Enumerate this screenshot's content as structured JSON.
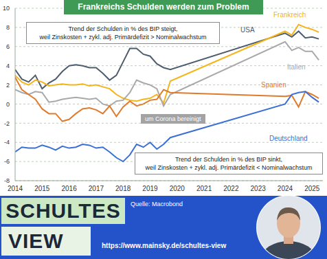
{
  "chart_data": {
    "type": "line",
    "title": "Frankreichs Schulden werden zum Problem",
    "x": [
      2014,
      2014.25,
      2014.5,
      2014.75,
      2015,
      2015.25,
      2015.5,
      2015.75,
      2016,
      2016.25,
      2016.5,
      2016.75,
      2017,
      2017.25,
      2017.5,
      2017.75,
      2018,
      2018.25,
      2018.5,
      2018.75,
      2019,
      2019.25,
      2019.5,
      2019.75,
      2024,
      2024.25,
      2024.5,
      2024.75,
      2025,
      2025.25
    ],
    "series": [
      {
        "name": "USA",
        "color": "#4d5d6e",
        "values": [
          3.6,
          2.6,
          2.3,
          3.0,
          1.6,
          2.2,
          2.6,
          3.4,
          4.0,
          4.1,
          4.0,
          3.8,
          3.8,
          3.2,
          2.5,
          3.0,
          4.4,
          5.8,
          5.8,
          5.2,
          5.0,
          4.2,
          3.8,
          3.6,
          7.4,
          7.0,
          7.6,
          6.9,
          7.0,
          6.8
        ]
      },
      {
        "name": "Frankreich",
        "color": "#f4b41a",
        "values": [
          3.0,
          2.3,
          2.0,
          2.5,
          2.3,
          1.9,
          2.0,
          2.1,
          2.0,
          2.0,
          2.1,
          1.9,
          2.0,
          1.8,
          1.6,
          1.0,
          0.6,
          0.4,
          0.3,
          0.5,
          0.6,
          1.0,
          0.1,
          2.4,
          7.6,
          7.2,
          8.3,
          8.0,
          7.8,
          7.5
        ]
      },
      {
        "name": "Italien",
        "color": "#a9a9a9",
        "values": [
          1.5,
          1.2,
          1.0,
          1.3,
          1.2,
          0.2,
          0.3,
          0.5,
          0.6,
          0.7,
          0.6,
          0.5,
          0.6,
          0.0,
          -0.2,
          0.3,
          0.4,
          1.2,
          2.5,
          2.2,
          2.0,
          1.6,
          -0.2,
          1.0,
          6.5,
          5.6,
          5.9,
          5.5,
          5.5,
          4.6
        ]
      },
      {
        "name": "Spanien",
        "color": "#e07b2c",
        "values": [
          2.8,
          1.5,
          1.0,
          0.5,
          -0.5,
          -1.0,
          -1.0,
          -1.8,
          -1.6,
          -1.0,
          -0.5,
          -0.4,
          -0.6,
          -1.0,
          -0.2,
          -1.3,
          -0.3,
          0.3,
          -0.2,
          0.0,
          0.4,
          0.5,
          1.5,
          1.2,
          0.8,
          0.9,
          -0.3,
          1.3,
          1.0,
          0.6
        ]
      },
      {
        "name": "Deutschland",
        "color": "#3a6fd6",
        "values": [
          -5.0,
          -4.5,
          -4.6,
          -4.6,
          -4.3,
          -4.5,
          -4.8,
          -4.4,
          -4.6,
          -4.5,
          -4.2,
          -4.3,
          -4.6,
          -4.5,
          -5.0,
          -5.6,
          -6.0,
          -5.3,
          -4.2,
          -4.5,
          -4.0,
          -4.7,
          -4.2,
          -3.5,
          0.0,
          1.0,
          1.2,
          1.3,
          0.7,
          0.2
        ]
      }
    ],
    "xlim": [
      2014,
      2025.4
    ],
    "xticks": [
      2014,
      2015,
      2016,
      2017,
      2018,
      2019,
      2020,
      2021,
      2022,
      2023,
      2024,
      2025
    ],
    "ylim": [
      -8,
      10
    ],
    "yticks": [
      -8,
      -6,
      -4,
      -2,
      0,
      2,
      4,
      6,
      8,
      10
    ],
    "grid": true,
    "annotations": [
      [
        "Trend der Schulden in % des BIP steigt,",
        "weil Zinskosten + zykl. adj. Primärdefizit > Nominalwachstum"
      ],
      [
        "um Corona bereinigt"
      ],
      [
        "Trend der Schulden in % des BIP sinkt,",
        "weil Zinskosten + zykl. adj. Primärdefizit < Nominalwachstum"
      ]
    ],
    "source": "Quelle: Macrobond"
  },
  "branding": {
    "name_line1": "SCHULTES",
    "name_line2": "VIEW",
    "url": "https://www.mainsky.de/schultes-view"
  }
}
